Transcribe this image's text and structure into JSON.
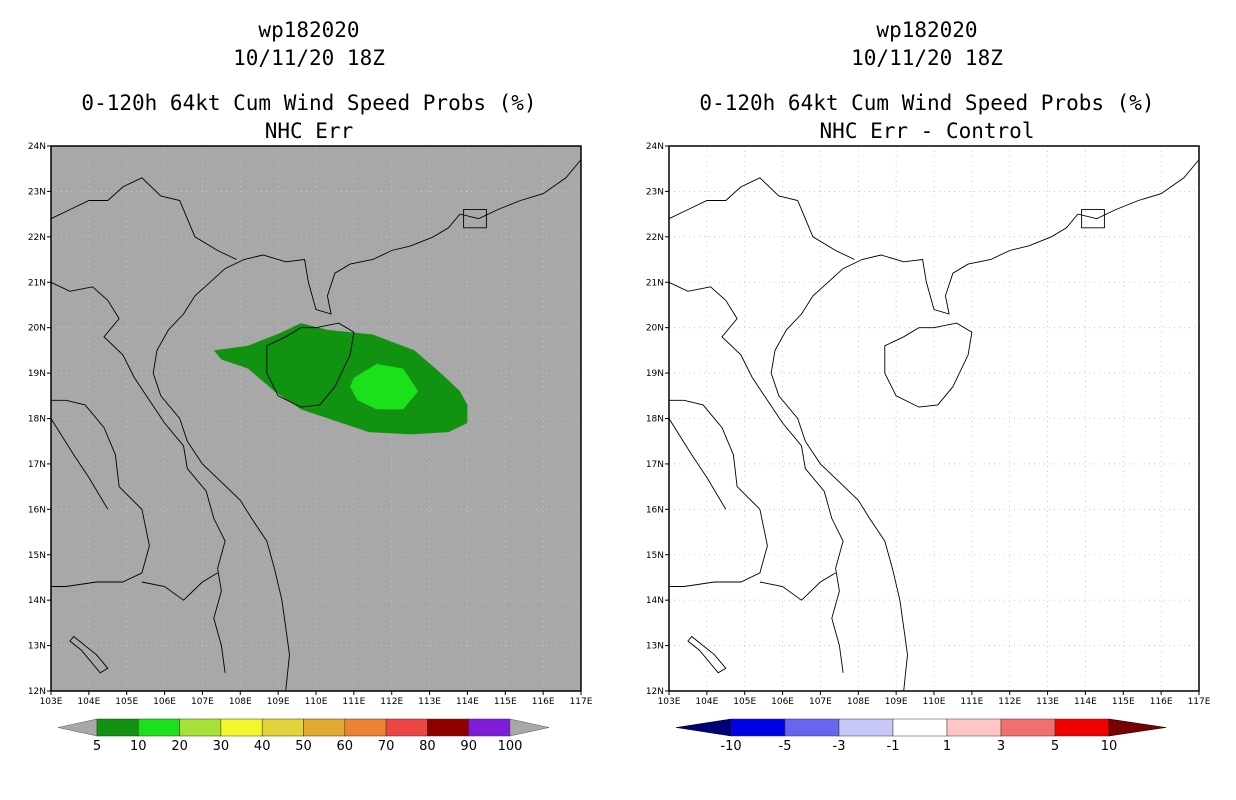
{
  "left": {
    "title_line1": "wp182020",
    "title_line2": "10/11/20 18Z",
    "title_line3": "0-120h 64kt Cum Wind Speed Probs (%)",
    "title_line4": "NHC Err",
    "background_color": "#a8a8a8",
    "probability_contours": [
      {
        "level": "5-10",
        "color": "#119311"
      },
      {
        "level": "10-20",
        "color": "#1be11b"
      }
    ],
    "colorbar": {
      "labels": [
        "5",
        "10",
        "20",
        "30",
        "40",
        "50",
        "60",
        "70",
        "80",
        "90",
        "100"
      ],
      "colors": [
        "#119311",
        "#1be11b",
        "#a6e235",
        "#f5f52b",
        "#e2d33a",
        "#e2aa31",
        "#ed8330",
        "#ee4545",
        "#8f0000",
        "#7f1cd9"
      ],
      "end_color": "#a8a8a8"
    }
  },
  "right": {
    "title_line1": "wp182020",
    "title_line2": "10/11/20 18Z",
    "title_line3": "0-120h 64kt Cum Wind Speed Probs (%)",
    "title_line4": "NHC Err - Control",
    "background_color": "#ffffff",
    "colorbar": {
      "labels": [
        "-10",
        "-5",
        "-3",
        "-1",
        "1",
        "3",
        "5",
        "10"
      ],
      "colors": [
        "#0000e6",
        "#6666f0",
        "#c8c8f8",
        "#ffffff",
        "#ffc6c6",
        "#f07070",
        "#f00000"
      ],
      "low_end_color": "#000078",
      "high_end_color": "#780000"
    }
  },
  "axes": {
    "lon_labels": [
      "103E",
      "104E",
      "105E",
      "106E",
      "107E",
      "108E",
      "109E",
      "110E",
      "111E",
      "112E",
      "113E",
      "114E",
      "115E",
      "116E",
      "117E"
    ],
    "lat_labels": [
      "12N",
      "13N",
      "14N",
      "15N",
      "16N",
      "17N",
      "18N",
      "19N",
      "20N",
      "21N",
      "22N",
      "23N",
      "24N"
    ]
  }
}
